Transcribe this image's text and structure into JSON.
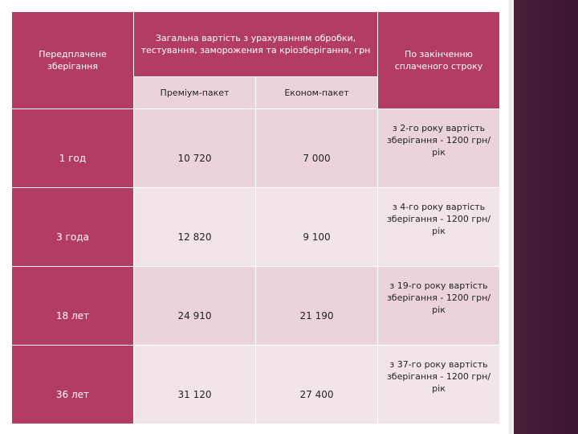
{
  "table": {
    "header": {
      "col1": "Передплачене зберігання",
      "col2": "Загальна вартість з урахуванням обробки, тестування, заморожения та кріозберігання, грн",
      "col3": "По закінченню сплаченого строку",
      "sub1": "Преміум-пакет",
      "sub2": "Економ-пакет"
    },
    "rows": [
      {
        "period": "1 год",
        "premium": "10 720",
        "economy": "7 000",
        "note": "з 2-го року вартість зберігання - 1200 грн/рік"
      },
      {
        "period": "3 года",
        "premium": "12 820",
        "economy": "9 100",
        "note": "з 4-го року вартість зберігання - 1200 грн/рік"
      },
      {
        "period": "18 лет",
        "premium": "24 910",
        "economy": "21 190",
        "note": "з 19-го року вартість зберігання - 1200 грн/рік"
      },
      {
        "period": "36 лет",
        "premium": "31 120",
        "economy": "27 400",
        "note": "з 37-го року вартість зберігання - 1200 грн/рік"
      }
    ]
  },
  "colors": {
    "header_bg": "#b23c66",
    "cell_light": "#ead3da",
    "cell_pale": "#f2e5e9",
    "stripe": "#4a1f38"
  }
}
